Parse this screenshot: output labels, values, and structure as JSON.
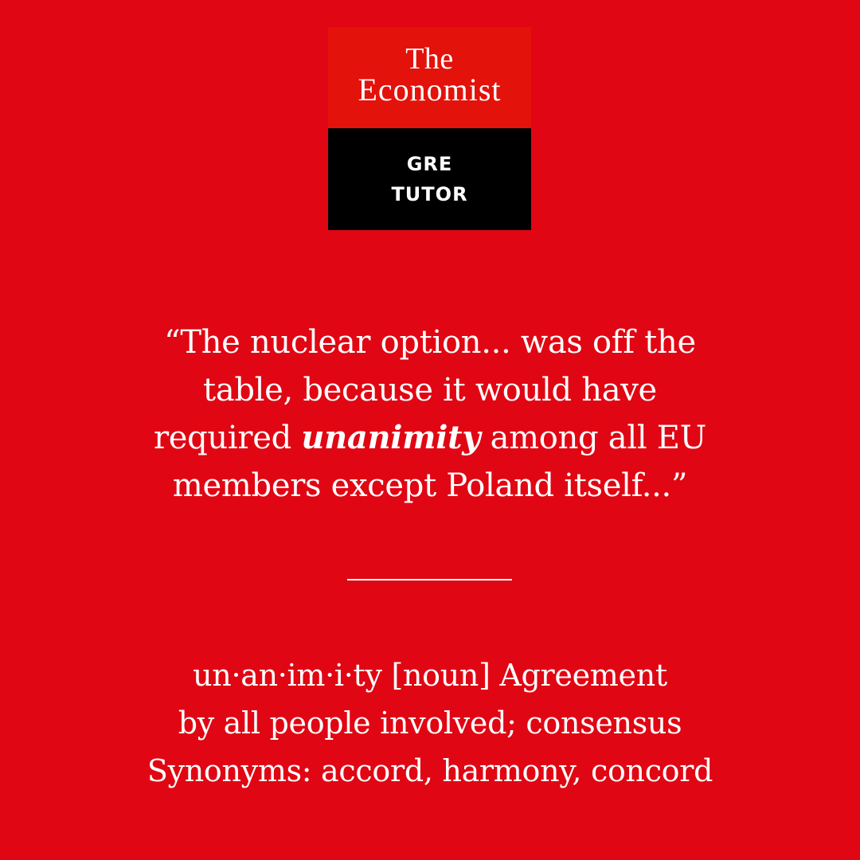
{
  "logo": {
    "line1": "The",
    "line2": "Economist",
    "tutor_line1": "GRE",
    "tutor_line2": "TUTOR"
  },
  "quote": {
    "line1": "“The nuclear option... was off the",
    "line2": "table, because it would have",
    "line3_before": "required ",
    "line3_word": "unanimity",
    "line3_after": " among all EU",
    "line4": "members except Poland itself...”"
  },
  "definition": {
    "line1": "un·an·im·i·ty [noun] Agreement",
    "line2": "by all people involved; consensus",
    "line3": "Synonyms: accord, harmony, concord"
  },
  "colors": {
    "background": "#e10613",
    "logo_top": "#e3120b",
    "logo_bottom": "#000000",
    "text": "#ffffff"
  }
}
